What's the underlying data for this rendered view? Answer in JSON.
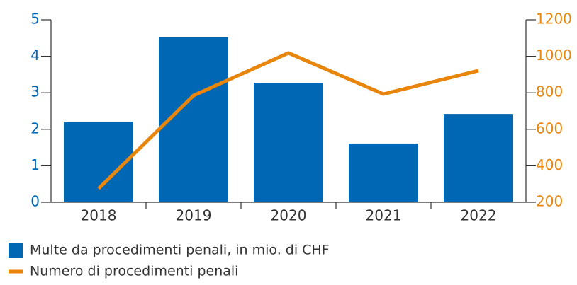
{
  "chart_data": {
    "type": "bar",
    "categories": [
      "2018",
      "2019",
      "2020",
      "2021",
      "2022"
    ],
    "series": [
      {
        "name": "Multe da procedimenti penali, in mio. di CHF",
        "color": "#0067b4",
        "type": "bar",
        "values": [
          2.21,
          4.52,
          3.27,
          1.61,
          2.42
        ]
      },
      {
        "name": "Numero di procedimenti penali",
        "color": "#e8850c",
        "type": "line",
        "axis": "y2",
        "values": [
          275,
          785,
          1018,
          793,
          921
        ]
      }
    ],
    "ylim": [
      0,
      5
    ],
    "yticks": [
      0,
      1,
      2,
      3,
      4,
      5
    ],
    "ycolor": "#0067b4",
    "y2lim": [
      200,
      1200
    ],
    "y2ticks": [
      200,
      400,
      600,
      800,
      1000,
      1200
    ],
    "y2color": "#e8850c",
    "grid": false
  }
}
